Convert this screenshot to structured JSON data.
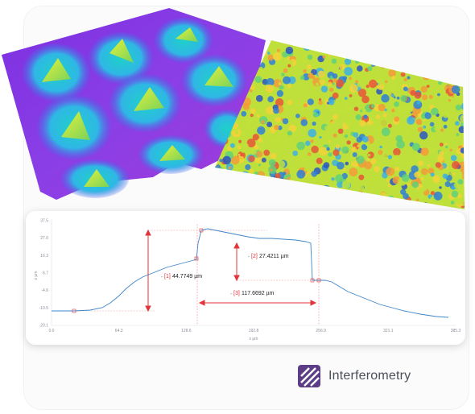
{
  "badge": {
    "label": "Interferometry",
    "icon": "interferometry-icon",
    "color": "#5c3d86"
  },
  "profile": {
    "y_ticks": [
      "37.5",
      "27.0",
      "16.3",
      "6.7",
      "-4.6",
      "-10.5",
      "-20.1"
    ],
    "x_ticks": [
      "0.0",
      "64.3",
      "128.6",
      "192.8",
      "256.9",
      "321.1",
      "385.3"
    ],
    "y_unit": "z µm",
    "x_unit": "x µm",
    "measurements": [
      {
        "index": "[1]",
        "value": "44.7749 µm"
      },
      {
        "index": "[2]",
        "value": "27.4211 µm"
      },
      {
        "index": "[3]",
        "value": "117.6692 µm"
      }
    ],
    "colors": {
      "line": "#3f86c8",
      "marker": "#e0353a"
    }
  }
}
